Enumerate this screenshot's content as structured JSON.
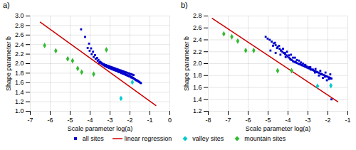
{
  "chart_data": [
    {
      "type": "scatter",
      "title": "a)",
      "xlabel": "Scale parameter log(a)",
      "ylabel": "Shape parameter b",
      "xlim": [
        -7,
        0
      ],
      "ylim": [
        1.0,
        3.0
      ],
      "xticks": [
        -7,
        -6,
        -5,
        -4,
        -3,
        -2,
        -1,
        0
      ],
      "yticks": [
        {
          "value": 1.0,
          "label": "1.0"
        },
        1.2,
        1.4,
        1.6,
        1.8,
        {
          "value": 2.0,
          "label": "2.0"
        },
        2.2,
        2.4,
        2.6,
        2.8,
        {
          "value": 3.0,
          "label": "3.0"
        }
      ],
      "grid": true,
      "legend": "bottom",
      "series": [
        {
          "name": "all sites",
          "type": "scatter",
          "marker": "square",
          "color": "#0000cc",
          "x": [
            -4.45,
            -4.25,
            -4.05,
            -3.95,
            -3.85,
            -3.75,
            -3.65,
            -3.58,
            -3.5,
            -3.45,
            -3.42,
            -3.38,
            -3.35,
            -3.32,
            -3.28,
            -3.25,
            -3.22,
            -3.18,
            -3.15,
            -3.12,
            -3.08,
            -3.05,
            -3.02,
            -2.98,
            -2.95,
            -2.92,
            -2.88,
            -2.85,
            -2.82,
            -2.78,
            -2.75,
            -2.72,
            -2.68,
            -2.65,
            -2.62,
            -2.58,
            -2.55,
            -2.52,
            -2.48,
            -2.45,
            -2.42,
            -2.38,
            -2.35,
            -2.32,
            -2.28,
            -2.25,
            -2.22,
            -2.18,
            -2.15,
            -2.12,
            -2.08,
            -2.05,
            -2.02,
            -1.98,
            -1.95,
            -1.92,
            -1.88,
            -1.85,
            -1.82,
            -1.78,
            -1.75,
            -1.72,
            -1.68,
            -1.65,
            -1.62,
            -1.58,
            -1.55,
            -1.52,
            -1.48,
            -1.45,
            -3.55,
            -3.48,
            -3.4,
            -3.35,
            -3.28,
            -3.22,
            -3.15,
            -3.08,
            -3.02,
            -2.95,
            -2.88,
            -2.82,
            -2.75,
            -2.68,
            -2.62,
            -2.55,
            -2.48,
            -2.42,
            -2.35,
            -2.28,
            -2.22,
            -2.15,
            -2.08,
            -2.02,
            -1.95,
            -1.88,
            -1.82,
            -3.62,
            -3.72,
            -3.82,
            -3.92,
            -4.02,
            -4.12,
            -3.52,
            -3.42,
            -3.32,
            -3.22,
            -3.12,
            -3.02,
            -2.92,
            -2.82,
            -2.72,
            -2.62,
            -2.52,
            -2.42,
            -2.32,
            -2.22,
            -2.12,
            -2.02,
            -1.92
          ],
          "values": [
            2.72,
            2.56,
            2.42,
            2.32,
            2.25,
            2.18,
            2.12,
            2.08,
            2.04,
            2.02,
            2.0,
            1.99,
            1.98,
            1.97,
            1.96,
            1.95,
            1.95,
            1.94,
            1.93,
            1.93,
            1.92,
            1.91,
            1.91,
            1.9,
            1.9,
            1.89,
            1.88,
            1.88,
            1.87,
            1.87,
            1.86,
            1.86,
            1.85,
            1.85,
            1.84,
            1.83,
            1.83,
            1.82,
            1.82,
            1.81,
            1.8,
            1.8,
            1.79,
            1.79,
            1.78,
            1.78,
            1.77,
            1.76,
            1.76,
            1.75,
            1.75,
            1.74,
            1.73,
            1.73,
            1.72,
            1.71,
            1.71,
            1.7,
            1.69,
            1.68,
            1.67,
            1.66,
            1.65,
            1.65,
            1.64,
            1.63,
            1.62,
            1.61,
            1.6,
            1.59,
            2.01,
            2.03,
            2.0,
            1.99,
            1.98,
            1.97,
            1.96,
            1.95,
            1.94,
            1.93,
            1.92,
            1.91,
            1.9,
            1.89,
            1.88,
            1.87,
            1.86,
            1.85,
            1.84,
            1.83,
            1.82,
            1.81,
            1.8,
            1.79,
            1.78,
            1.77,
            1.76,
            2.06,
            2.1,
            2.14,
            2.2,
            2.27,
            2.33,
            2.03,
            2.01,
            1.99,
            1.97,
            1.95,
            1.93,
            1.91,
            1.89,
            1.87,
            1.85,
            1.83,
            1.81,
            1.79,
            1.77,
            1.75,
            1.73,
            1.71
          ]
        },
        {
          "name": "linear regression",
          "type": "line",
          "color": "#cc0000",
          "x": [
            -6.5,
            -0.7
          ],
          "values": [
            2.87,
            1.12
          ]
        },
        {
          "name": "valley sites",
          "type": "scatter",
          "marker": "diamond",
          "color": "#00cccc",
          "x": [
            -2.45,
            -1.88
          ],
          "values": [
            1.27,
            1.61
          ]
        },
        {
          "name": "mountain sites",
          "type": "scatter",
          "marker": "diamond",
          "color": "#33bb33",
          "x": [
            -6.28,
            -5.72,
            -5.12,
            -4.88,
            -4.62,
            -4.42,
            -3.82,
            -3.18
          ],
          "values": [
            2.38,
            2.27,
            2.1,
            2.06,
            1.9,
            1.82,
            1.78,
            2.29
          ]
        }
      ]
    },
    {
      "type": "scatter",
      "title": "b)",
      "xlabel": "Scale parameter log(a)",
      "ylabel": "Shape parameter b",
      "xlim": [
        -8,
        -1
      ],
      "ylim": [
        1.2,
        2.8
      ],
      "xticks": [
        -8,
        -7,
        -6,
        -5,
        -4,
        -3,
        -2,
        -1
      ],
      "yticks": [
        1.2,
        1.4,
        1.6,
        1.8,
        {
          "value": 2.0,
          "label": "2.0"
        },
        2.2,
        2.4,
        2.6,
        2.8
      ],
      "grid": true,
      "legend": "bottom",
      "series": [
        {
          "name": "all sites",
          "type": "scatter",
          "marker": "square",
          "color": "#0000cc",
          "x": [
            -5.12,
            -5.02,
            -4.92,
            -4.82,
            -4.72,
            -4.62,
            -4.52,
            -4.42,
            -4.35,
            -4.28,
            -4.22,
            -4.15,
            -4.08,
            -4.02,
            -3.95,
            -3.88,
            -3.82,
            -3.75,
            -3.68,
            -3.62,
            -3.55,
            -3.48,
            -3.42,
            -3.35,
            -3.28,
            -3.22,
            -3.15,
            -3.08,
            -3.02,
            -2.95,
            -2.88,
            -2.82,
            -2.75,
            -2.68,
            -2.62,
            -2.55,
            -2.48,
            -2.42,
            -2.35,
            -2.28,
            -2.22,
            -2.15,
            -2.08,
            -2.02,
            -1.95,
            -1.88,
            -1.82,
            -4.88,
            -4.62,
            -4.38,
            -4.12,
            -3.88,
            -3.62,
            -3.38,
            -3.12,
            -2.88,
            -2.62,
            -2.38,
            -2.12,
            -1.88,
            -4.75,
            -4.55,
            -4.35,
            -4.15,
            -3.95,
            -3.75,
            -3.55,
            -3.35,
            -3.15,
            -2.95,
            -2.75,
            -2.55,
            -2.35,
            -2.15,
            -1.95,
            -4.65,
            -4.45,
            -4.25,
            -4.05,
            -3.85,
            -3.65,
            -3.45,
            -3.25,
            -3.05,
            -2.85,
            -2.65,
            -2.45,
            -2.25,
            -2.05,
            -1.85,
            -1.82
          ],
          "values": [
            2.45,
            2.42,
            2.4,
            2.37,
            2.34,
            2.31,
            2.28,
            2.25,
            2.22,
            2.2,
            2.18,
            2.16,
            2.14,
            2.12,
            2.1,
            2.08,
            2.06,
            2.04,
            2.03,
            2.02,
            2.01,
            2.0,
            1.99,
            1.98,
            1.97,
            1.96,
            1.95,
            1.94,
            1.93,
            1.92,
            1.91,
            1.9,
            1.89,
            1.88,
            1.87,
            1.86,
            1.85,
            1.84,
            1.83,
            1.82,
            1.81,
            1.8,
            1.79,
            1.78,
            1.77,
            1.76,
            1.75,
            2.22,
            2.18,
            2.15,
            2.11,
            2.07,
            2.03,
            2.0,
            1.97,
            1.94,
            1.91,
            1.88,
            1.85,
            1.82,
            2.3,
            2.26,
            2.22,
            2.18,
            2.14,
            2.1,
            2.06,
            2.02,
            1.98,
            1.94,
            1.9,
            1.86,
            1.82,
            1.78,
            1.74,
            2.35,
            2.3,
            2.25,
            2.2,
            2.15,
            2.1,
            2.05,
            2.0,
            1.95,
            1.9,
            1.85,
            1.8,
            1.76,
            1.72,
            1.75,
            1.4
          ]
        },
        {
          "name": "linear regression",
          "type": "line",
          "color": "#cc0000",
          "x": [
            -7.8,
            -1.5
          ],
          "values": [
            2.76,
            1.36
          ]
        },
        {
          "name": "valley sites",
          "type": "scatter",
          "marker": "diamond",
          "color": "#00cccc",
          "x": [
            -2.52,
            -1.85
          ],
          "values": [
            1.62,
            1.63
          ]
        },
        {
          "name": "mountain sites",
          "type": "scatter",
          "marker": "diamond",
          "color": "#33bb33",
          "x": [
            -7.22,
            -6.82,
            -6.52,
            -6.12,
            -5.72,
            -4.52,
            -3.82
          ],
          "values": [
            2.5,
            2.45,
            2.38,
            2.22,
            2.22,
            1.88,
            1.88
          ]
        }
      ]
    }
  ]
}
